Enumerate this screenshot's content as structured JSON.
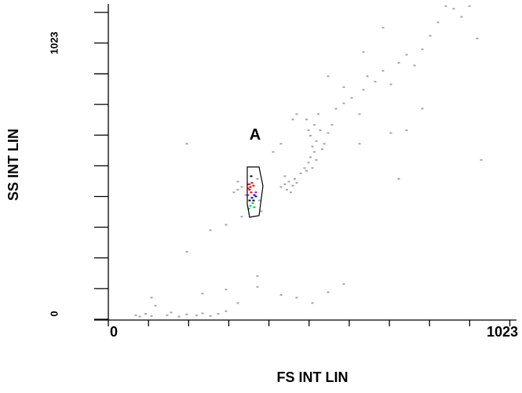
{
  "chart_data": {
    "type": "scatter",
    "x_label": "FS INT LIN",
    "y_label": "SS INT LIN",
    "xlim": [
      0,
      1040
    ],
    "ylim": [
      0,
      1168
    ],
    "xticks": [
      0,
      1023
    ],
    "yticks": [
      0,
      1023
    ],
    "xminorticks": [
      102.3,
      204.6,
      306.9,
      409.2,
      511.5,
      613.8,
      716.1,
      818.4,
      920.7
    ],
    "yminorticks": [
      113.7,
      227.3,
      341,
      454.7,
      568.3,
      682,
      795.7,
      909.3,
      1136.7
    ],
    "gate": {
      "label": "A",
      "label_x": 374,
      "label_y": 680,
      "x": [
        354,
        384,
        394,
        384,
        360,
        354
      ],
      "y": [
        564,
        564,
        494,
        384,
        378,
        427
      ],
      "color": "#000000"
    },
    "series": [
      {
        "color": "#a6a6a6",
        "x": [
          70,
          80,
          95,
          110,
          150,
          160,
          180,
          200,
          225,
          240,
          260,
          280,
          300,
          120,
          110,
          330,
          240,
          300,
          380,
          440,
          480,
          520,
          560,
          600,
          380,
          200,
          260,
          300,
          340,
          320,
          330,
          340,
          350,
          360,
          380,
          385,
          390,
          330,
          440,
          450,
          455,
          460,
          470,
          475,
          480,
          465,
          450,
          490,
          500,
          505,
          510,
          515,
          520,
          525,
          530,
          520,
          515,
          510,
          525,
          530,
          505,
          535,
          540,
          545,
          550,
          560,
          570,
          470,
          480,
          580,
          600,
          620,
          640,
          650,
          660,
          680,
          700,
          720,
          740,
          760,
          780,
          800,
          820,
          840,
          860,
          880,
          900,
          700,
          650,
          560,
          600,
          440,
          420,
          720,
          800,
          760,
          940,
          920,
          200,
          950,
          740,
          640
        ],
        "y": [
          15,
          10,
          20,
          12,
          15,
          25,
          10,
          18,
          14,
          22,
          12,
          20,
          30,
          50,
          80,
          60,
          95,
          110,
          120,
          90,
          80,
          60,
          100,
          130,
          160,
          250,
          330,
          350,
          380,
          470,
          480,
          490,
          460,
          500,
          520,
          440,
          400,
          510,
          490,
          500,
          480,
          510,
          495,
          520,
          505,
          470,
          530,
          540,
          560,
          550,
          580,
          600,
          560,
          620,
          590,
          640,
          680,
          700,
          720,
          660,
          740,
          760,
          700,
          630,
          650,
          690,
          720,
          740,
          760,
          780,
          800,
          820,
          760,
          850,
          900,
          880,
          920,
          870,
          950,
          980,
          940,
          1000,
          1050,
          1100,
          1160,
          1150,
          1120,
          1080,
          990,
          900,
          860,
          650,
          620,
          690,
          780,
          700,
          1040,
          1160,
          650,
          590,
          520,
          650
        ]
      },
      {
        "color": "#ff0000",
        "x": [
          358,
          362,
          366,
          360,
          370,
          364,
          356
        ],
        "y": [
          500,
          490,
          505,
          480,
          495,
          470,
          485
        ]
      },
      {
        "color": "#0000ff",
        "x": [
          372,
          366,
          376
        ],
        "y": [
          460,
          450,
          455
        ]
      },
      {
        "color": "#00cc44",
        "x": [
          362,
          368,
          358,
          372
        ],
        "y": [
          420,
          430,
          410,
          415
        ]
      },
      {
        "color": "#000000",
        "x": [
          360,
          370,
          364
        ],
        "y": [
          440,
          440,
          530
        ]
      },
      {
        "color": "#cc00cc",
        "x": [
          376,
          356
        ],
        "y": [
          470,
          460
        ]
      }
    ]
  }
}
